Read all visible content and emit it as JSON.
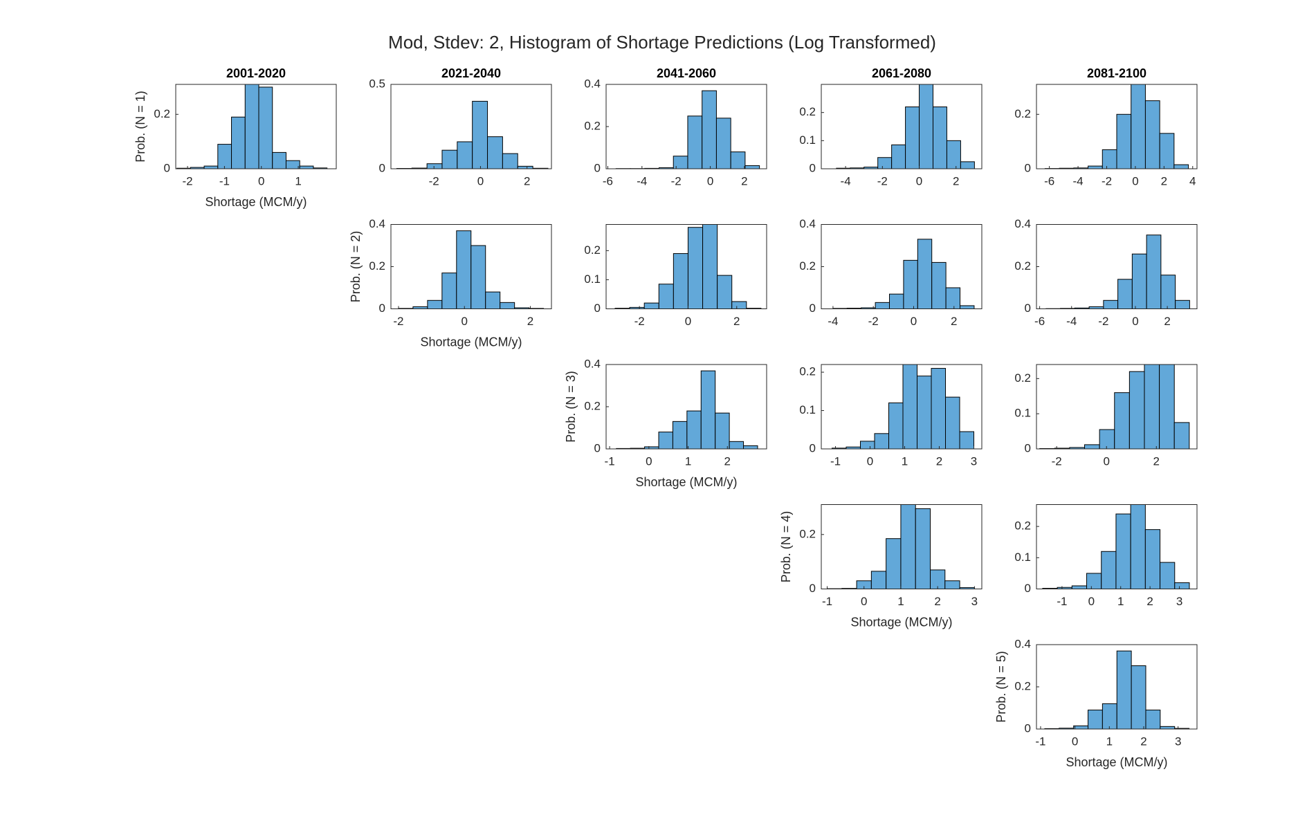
{
  "title": "Mod, Stdev: 2, Histogram of Shortage Predictions (Log Transformed)",
  "chart_data": [
    {
      "type": "histogram",
      "title": "2001-2020",
      "ylabel": "Prob. (N = 1)",
      "xlabel": "Shortage (MCM/y)",
      "color": "#62a8d9",
      "bins": [
        -2.29,
        -1.92,
        -1.55,
        -1.18,
        -0.81,
        -0.44,
        -0.07,
        0.3,
        0.67,
        1.04,
        1.41,
        1.78
      ],
      "values": [
        0.002,
        0.005,
        0.01,
        0.09,
        0.19,
        0.31,
        0.3,
        0.06,
        0.03,
        0.01,
        0.003
      ],
      "xlim": [
        -2.32,
        2.03
      ],
      "xticks": [
        -2,
        -1,
        0,
        1
      ],
      "ylim": [
        0,
        0.31
      ],
      "yticks": [
        0,
        0.2
      ]
    },
    {
      "type": "histogram",
      "title": "2021-2040",
      "color": "#62a8d9",
      "bins": [
        -3.6,
        -2.95,
        -2.3,
        -1.65,
        -1.0,
        -0.35,
        0.3,
        0.95,
        1.6,
        2.25,
        2.9
      ],
      "values": [
        0.002,
        0.004,
        0.03,
        0.11,
        0.16,
        0.4,
        0.19,
        0.09,
        0.015,
        0.003
      ],
      "xlim": [
        -3.85,
        3.05
      ],
      "xticks": [
        -2,
        0,
        2
      ],
      "ylim": [
        0,
        0.5
      ],
      "yticks": [
        0,
        0.5
      ]
    },
    {
      "type": "histogram",
      "title": "2041-2060",
      "color": "#62a8d9",
      "bins": [
        -5.52,
        -4.68,
        -3.84,
        -3.0,
        -2.16,
        -1.32,
        -0.48,
        0.36,
        1.2,
        2.04,
        2.88
      ],
      "values": [
        0.001,
        0.001,
        0.002,
        0.005,
        0.06,
        0.25,
        0.37,
        0.24,
        0.08,
        0.015
      ],
      "xlim": [
        -6.1,
        3.3
      ],
      "xticks": [
        -6,
        -4,
        -2,
        0,
        2
      ],
      "ylim": [
        0,
        0.4
      ],
      "yticks": [
        0,
        0.2,
        0.4
      ]
    },
    {
      "type": "histogram",
      "title": "2061-2080",
      "color": "#62a8d9",
      "bins": [
        -4.5,
        -3.75,
        -3.0,
        -2.25,
        -1.5,
        -0.75,
        0,
        0.75,
        1.5,
        2.25,
        3.0
      ],
      "values": [
        0.002,
        0.003,
        0.006,
        0.04,
        0.085,
        0.22,
        0.3,
        0.22,
        0.1,
        0.025
      ],
      "xlim": [
        -5.32,
        3.4
      ],
      "xticks": [
        -4,
        -2,
        0,
        2
      ],
      "ylim": [
        0,
        0.3
      ],
      "yticks": [
        0,
        0.1,
        0.2
      ]
    },
    {
      "type": "histogram",
      "title": "2081-2100",
      "color": "#62a8d9",
      "bins": [
        -6.3,
        -5.3,
        -4.3,
        -3.3,
        -2.3,
        -1.3,
        -0.3,
        0.7,
        1.7,
        2.7,
        3.7
      ],
      "values": [
        0.001,
        0.002,
        0.003,
        0.01,
        0.07,
        0.2,
        0.31,
        0.25,
        0.13,
        0.015
      ],
      "xlim": [
        -6.9,
        4.3
      ],
      "xticks": [
        -6,
        -4,
        -2,
        0,
        2,
        4
      ],
      "ylim": [
        0,
        0.31
      ],
      "yticks": [
        0,
        0.2
      ]
    },
    {
      "type": "histogram",
      "ylabel": "Prob. (N = 2)",
      "xlabel": "Shortage (MCM/y)",
      "color": "#62a8d9",
      "bins": [
        -2.0,
        -1.56,
        -1.12,
        -0.68,
        -0.24,
        0.2,
        0.64,
        1.08,
        1.52,
        1.96,
        2.4
      ],
      "values": [
        0.002,
        0.01,
        0.04,
        0.17,
        0.37,
        0.3,
        0.08,
        0.03,
        0.005,
        0.002
      ],
      "xlim": [
        -2.23,
        2.64
      ],
      "xticks": [
        -2,
        0,
        2
      ],
      "ylim": [
        0,
        0.4
      ],
      "yticks": [
        0,
        0.2,
        0.4
      ]
    },
    {
      "type": "histogram",
      "color": "#62a8d9",
      "bins": [
        -3.0,
        -2.4,
        -1.8,
        -1.2,
        -0.6,
        0,
        0.6,
        1.2,
        1.8,
        2.4,
        3.0
      ],
      "values": [
        0.002,
        0.005,
        0.02,
        0.085,
        0.19,
        0.28,
        0.29,
        0.115,
        0.025,
        0.002
      ],
      "xlim": [
        -3.37,
        3.23
      ],
      "xticks": [
        -2,
        0,
        2
      ],
      "ylim": [
        0,
        0.29
      ],
      "yticks": [
        0,
        0.1,
        0.2
      ]
    },
    {
      "type": "histogram",
      "color": "#62a8d9",
      "bins": [
        -4.0,
        -3.3,
        -2.6,
        -1.9,
        -1.2,
        -0.5,
        0.2,
        0.9,
        1.6,
        2.3,
        3.0
      ],
      "values": [
        0.002,
        0.003,
        0.005,
        0.03,
        0.07,
        0.23,
        0.33,
        0.22,
        0.1,
        0.015
      ],
      "xlim": [
        -4.58,
        3.38
      ],
      "xticks": [
        -4,
        -2,
        0,
        2
      ],
      "ylim": [
        0,
        0.4
      ],
      "yticks": [
        0,
        0.2,
        0.4
      ]
    },
    {
      "type": "histogram",
      "color": "#62a8d9",
      "bins": [
        -5.6,
        -4.7,
        -3.8,
        -2.9,
        -2.0,
        -1.1,
        -0.2,
        0.7,
        1.6,
        2.5,
        3.4
      ],
      "values": [
        0.001,
        0.002,
        0.004,
        0.01,
        0.04,
        0.14,
        0.26,
        0.35,
        0.16,
        0.04
      ],
      "xlim": [
        -6.2,
        3.86
      ],
      "xticks": [
        -6,
        -4,
        -2,
        0,
        2
      ],
      "ylim": [
        0,
        0.4
      ],
      "yticks": [
        0,
        0.2,
        0.4
      ]
    },
    {
      "type": "histogram",
      "ylabel": "Prob. (N = 3)",
      "xlabel": "Shortage (MCM/y)",
      "color": "#62a8d9",
      "bins": [
        -0.83,
        -0.47,
        -0.11,
        0.25,
        0.61,
        0.97,
        1.33,
        1.69,
        2.05,
        2.41,
        2.77
      ],
      "values": [
        0.002,
        0.003,
        0.01,
        0.08,
        0.13,
        0.18,
        0.37,
        0.17,
        0.035,
        0.015
      ],
      "xlim": [
        -1.09,
        3.0
      ],
      "xticks": [
        -1,
        0,
        1,
        2
      ],
      "ylim": [
        0,
        0.4
      ],
      "yticks": [
        0,
        0.2,
        0.4
      ]
    },
    {
      "type": "histogram",
      "color": "#62a8d9",
      "bins": [
        -1.1,
        -0.69,
        -0.28,
        0.13,
        0.54,
        0.95,
        1.36,
        1.77,
        2.18,
        2.59,
        3.0
      ],
      "values": [
        0.002,
        0.005,
        0.02,
        0.04,
        0.12,
        0.22,
        0.19,
        0.21,
        0.135,
        0.045
      ],
      "xlim": [
        -1.41,
        3.23
      ],
      "xticks": [
        -1,
        0,
        1,
        2,
        3
      ],
      "ylim": [
        0,
        0.22
      ],
      "yticks": [
        0,
        0.1,
        0.2
      ]
    },
    {
      "type": "histogram",
      "color": "#62a8d9",
      "bins": [
        -2.68,
        -2.08,
        -1.48,
        -0.88,
        -0.28,
        0.32,
        0.92,
        1.52,
        2.12,
        2.72,
        3.32
      ],
      "values": [
        0.001,
        0.002,
        0.004,
        0.012,
        0.055,
        0.16,
        0.22,
        0.24,
        0.24,
        0.075
      ],
      "xlim": [
        -2.81,
        3.63
      ],
      "xticks": [
        -2,
        0,
        2
      ],
      "ylim": [
        0,
        0.24
      ],
      "yticks": [
        0,
        0.1,
        0.2
      ]
    },
    {
      "type": "histogram",
      "ylabel": "Prob. (N = 4)",
      "xlabel": "Shortage (MCM/y)",
      "color": "#62a8d9",
      "bins": [
        -1.0,
        -0.6,
        -0.2,
        0.2,
        0.6,
        1.0,
        1.4,
        1.8,
        2.2,
        2.6,
        3.0
      ],
      "values": [
        0.001,
        0.002,
        0.03,
        0.065,
        0.185,
        0.31,
        0.295,
        0.07,
        0.03,
        0.005
      ],
      "xlim": [
        -1.16,
        3.2
      ],
      "xticks": [
        -1,
        0,
        1,
        2,
        3
      ],
      "ylim": [
        0,
        0.31
      ],
      "yticks": [
        0,
        0.2
      ]
    },
    {
      "type": "histogram",
      "color": "#62a8d9",
      "bins": [
        -1.66,
        -1.16,
        -0.66,
        -0.16,
        0.34,
        0.84,
        1.34,
        1.84,
        2.34,
        2.84,
        3.34
      ],
      "values": [
        0.002,
        0.005,
        0.01,
        0.05,
        0.12,
        0.24,
        0.27,
        0.19,
        0.085,
        0.02
      ],
      "xlim": [
        -1.87,
        3.6
      ],
      "xticks": [
        -1,
        0,
        1,
        2,
        3
      ],
      "ylim": [
        0,
        0.27
      ],
      "yticks": [
        0,
        0.1,
        0.2
      ]
    },
    {
      "type": "histogram",
      "ylabel": "Prob. (N = 5)",
      "xlabel": "Shortage (MCM/y)",
      "color": "#62a8d9",
      "bins": [
        -0.88,
        -0.46,
        -0.04,
        0.38,
        0.8,
        1.22,
        1.64,
        2.06,
        2.48,
        2.9,
        3.32
      ],
      "values": [
        0.002,
        0.004,
        0.015,
        0.09,
        0.12,
        0.37,
        0.3,
        0.09,
        0.012,
        0.003
      ],
      "xlim": [
        -1.12,
        3.55
      ],
      "xticks": [
        -1,
        0,
        1,
        2,
        3
      ],
      "ylim": [
        0,
        0.4
      ],
      "yticks": [
        0,
        0.2,
        0.4
      ]
    }
  ]
}
